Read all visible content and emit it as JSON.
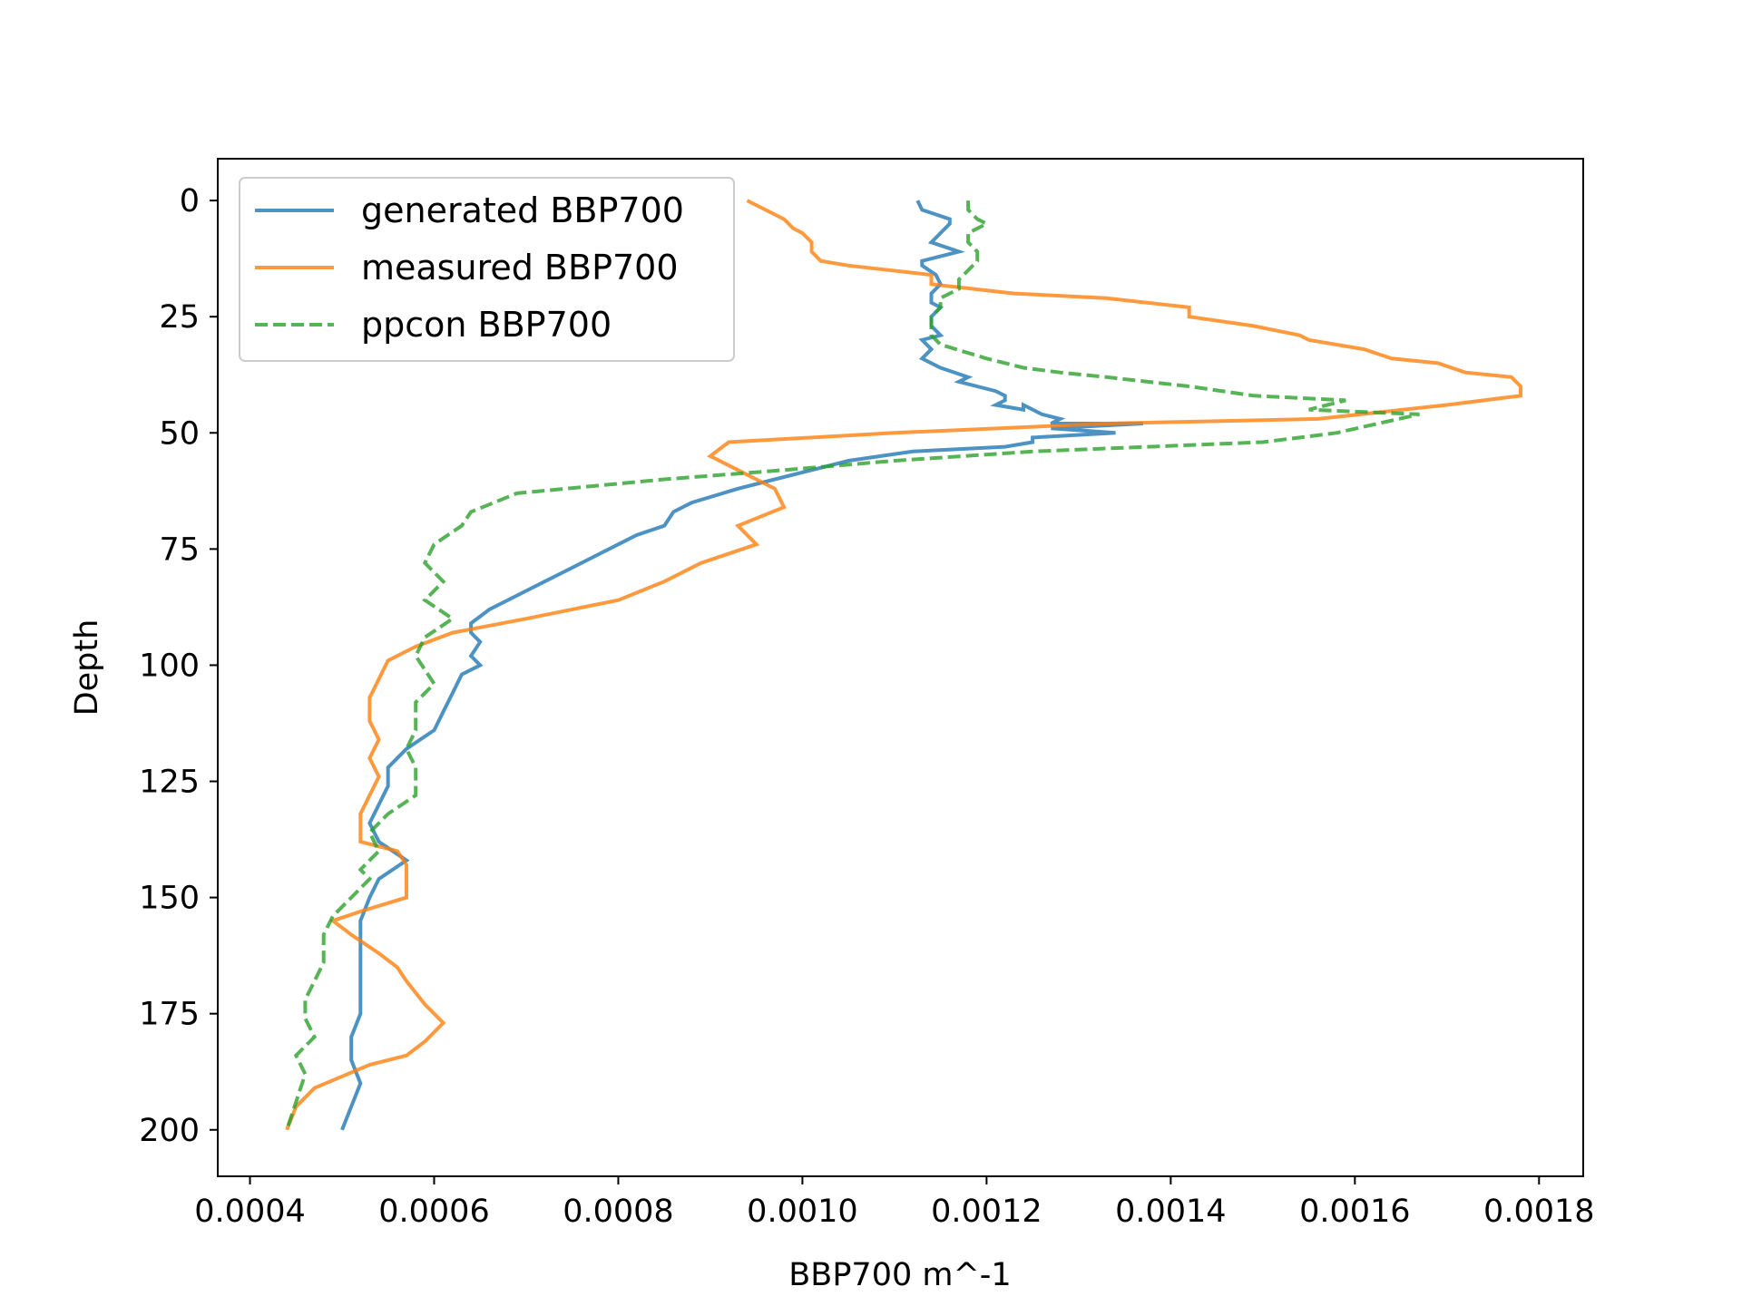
{
  "chart_data": {
    "type": "line",
    "xlabel": "BBP700 m^-1",
    "ylabel": "Depth",
    "xlim": [
      0.000365,
      0.001848
    ],
    "ylim": [
      210,
      -9
    ],
    "y_inverted": true,
    "grid": false,
    "legend_position": "upper left",
    "x_ticks": [
      0.0004,
      0.0006,
      0.0008,
      0.001,
      0.0012,
      0.0014,
      0.0016,
      0.0018
    ],
    "x_tick_labels": [
      "0.0004",
      "0.0006",
      "0.0008",
      "0.0010",
      "0.0012",
      "0.0014",
      "0.0016",
      "0.0018"
    ],
    "y_ticks": [
      0,
      25,
      50,
      75,
      100,
      125,
      150,
      175,
      200
    ],
    "y_tick_labels": [
      "0",
      "25",
      "50",
      "75",
      "100",
      "125",
      "150",
      "175",
      "200"
    ],
    "series": [
      {
        "name": "generated BBP700",
        "color": "#1f77b4",
        "style": "solid",
        "x": [
          0.001125,
          0.00113,
          0.00116,
          0.00116,
          0.00115,
          0.00114,
          0.00117,
          0.00113,
          0.00113,
          0.001145,
          0.00115,
          0.00114,
          0.00114,
          0.00115,
          0.00114,
          0.00114,
          0.00115,
          0.00113,
          0.00114,
          0.00113,
          0.00115,
          0.00118,
          0.00117,
          0.00121,
          0.00122,
          0.00122,
          0.00121,
          0.00124,
          0.00124,
          0.00126,
          0.00128,
          0.00127,
          0.00137,
          0.00127,
          0.00134,
          0.00125,
          0.00125,
          0.00122,
          0.00112,
          0.00105,
          0.00101,
          0.00097,
          0.00093,
          0.00088,
          0.00086,
          0.00085,
          0.00082,
          0.0008,
          0.00077,
          0.00074,
          0.00072,
          0.00069,
          0.00066,
          0.00064,
          0.00064,
          0.00065,
          0.00064,
          0.00065,
          0.00063,
          0.00062,
          0.00061,
          0.0006,
          0.00057,
          0.00055,
          0.00055,
          0.00054,
          0.00053,
          0.00054,
          0.00057,
          0.00054,
          0.00053,
          0.00052,
          0.00052,
          0.00052,
          0.00052,
          0.00052,
          0.00051,
          0.00051,
          0.00052,
          0.0005
        ],
        "y": [
          0,
          2,
          4,
          5,
          7,
          9,
          11,
          13,
          14,
          16,
          18,
          20,
          22,
          23,
          25,
          27,
          29,
          30,
          32,
          34,
          36,
          38,
          39,
          41,
          42,
          43,
          44,
          45,
          44,
          46,
          47,
          48,
          48,
          49,
          50,
          51,
          52,
          53,
          54,
          56,
          58,
          60,
          62,
          65,
          67,
          70,
          72,
          74,
          77,
          80,
          82,
          85,
          88,
          91,
          93,
          95,
          98,
          100,
          102,
          106,
          110,
          114,
          118,
          122,
          126,
          130,
          134,
          138,
          142,
          146,
          150,
          155,
          160,
          165,
          170,
          175,
          180,
          185,
          190,
          200
        ]
      },
      {
        "name": "measured BBP700",
        "color": "#ff7f0e",
        "style": "solid",
        "x": [
          0.00094,
          0.00096,
          0.00098,
          0.00099,
          0.001,
          0.00101,
          0.00101,
          0.00102,
          0.00105,
          0.00114,
          0.00114,
          0.00123,
          0.00133,
          0.00142,
          0.00142,
          0.00149,
          0.00154,
          0.00155,
          0.00161,
          0.00164,
          0.00169,
          0.00172,
          0.00177,
          0.00178,
          0.00178,
          0.0017,
          0.00156,
          0.00133,
          0.0011,
          0.00092,
          0.0009,
          0.00093,
          0.00097,
          0.00098,
          0.00093,
          0.00095,
          0.00089,
          0.00085,
          0.0008,
          0.0007,
          0.00062,
          0.00058,
          0.00055,
          0.00054,
          0.00053,
          0.00053,
          0.00054,
          0.00053,
          0.00054,
          0.00053,
          0.00052,
          0.00052,
          0.00056,
          0.00057,
          0.00057,
          0.00052,
          0.00049,
          0.00051,
          0.00054,
          0.00056,
          0.00057,
          0.00059,
          0.00061,
          0.00059,
          0.00057,
          0.00053,
          0.00047,
          0.00045,
          0.00044
        ],
        "y": [
          0,
          2,
          4,
          6,
          7,
          9,
          11,
          13,
          14,
          16,
          18,
          20,
          21,
          23,
          25,
          27,
          29,
          30,
          32,
          34,
          35,
          37,
          38,
          40,
          42,
          44,
          47,
          48,
          50,
          52,
          55,
          58,
          62,
          66,
          70,
          74,
          78,
          82,
          86,
          90,
          93,
          96,
          99,
          103,
          107,
          112,
          116,
          120,
          124,
          128,
          132,
          138,
          140,
          143,
          150,
          153,
          155,
          158,
          162,
          165,
          168,
          173,
          177,
          181,
          184,
          186,
          191,
          195,
          200
        ]
      },
      {
        "name": "ppcon BBP700",
        "color": "#2ca02c",
        "style": "dashed",
        "x": [
          0.00118,
          0.00118,
          0.00119,
          0.0012,
          0.00118,
          0.00118,
          0.00119,
          0.00119,
          0.00118,
          0.00117,
          0.00117,
          0.00115,
          0.00115,
          0.00114,
          0.00114,
          0.00114,
          0.00115,
          0.0012,
          0.00124,
          0.00128,
          0.00133,
          0.00142,
          0.00149,
          0.00159,
          0.00155,
          0.00167,
          0.00158,
          0.0015,
          0.00125,
          0.0011,
          0.00098,
          0.00085,
          0.00069,
          0.00064,
          0.00063,
          0.0006,
          0.00059,
          0.00061,
          0.00059,
          0.00062,
          0.00059,
          0.00058,
          0.0006,
          0.00058,
          0.00058,
          0.00057,
          0.00058,
          0.00058,
          0.00055,
          0.00053,
          0.00054,
          0.00053,
          0.00052,
          0.00053,
          0.00052,
          0.00051,
          0.00049,
          0.00048,
          0.00048,
          0.00047,
          0.00046,
          0.00046,
          0.00047,
          0.00045,
          0.00046,
          0.00045,
          0.00044
        ],
        "y": [
          0,
          2,
          4,
          5,
          7,
          9,
          11,
          13,
          15,
          17,
          19,
          21,
          23,
          25,
          27,
          29,
          31,
          34,
          36,
          37,
          38,
          40,
          42,
          43,
          45,
          46,
          50,
          52,
          54,
          56,
          58,
          60,
          63,
          67,
          70,
          74,
          78,
          82,
          86,
          90,
          94,
          98,
          104,
          108,
          114,
          118,
          122,
          128,
          132,
          136,
          140,
          142,
          144,
          146,
          148,
          150,
          154,
          158,
          164,
          168,
          172,
          176,
          180,
          184,
          188,
          194,
          200
        ]
      }
    ]
  }
}
